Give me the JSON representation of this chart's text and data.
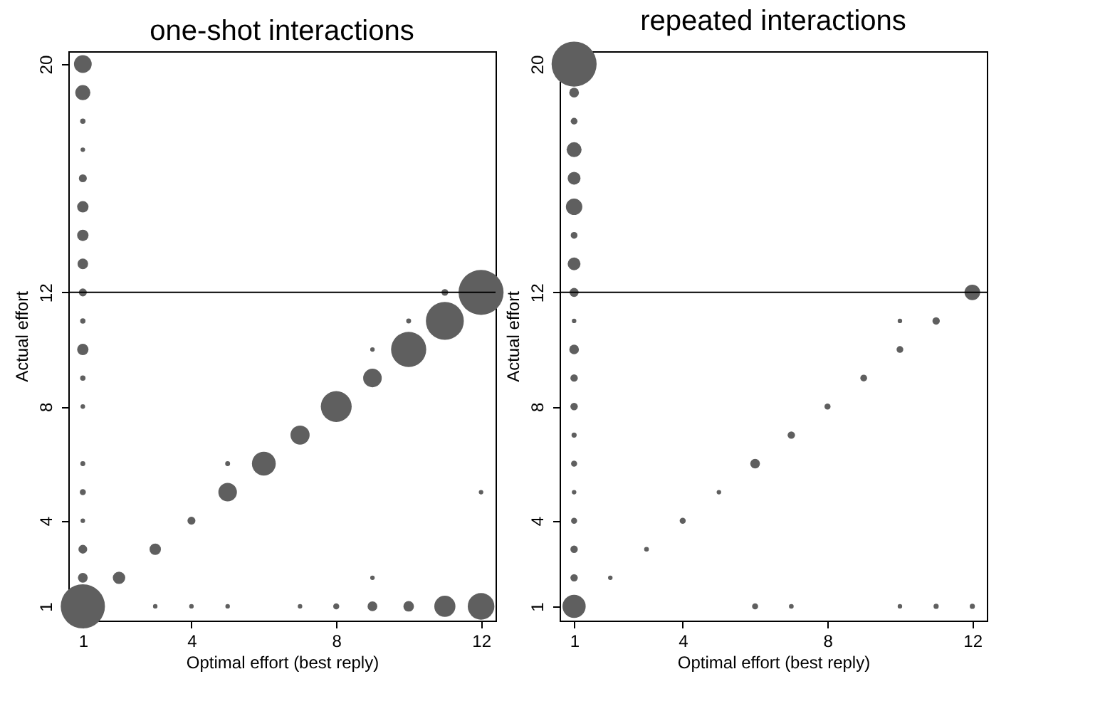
{
  "chart_data": [
    {
      "type": "bubble",
      "title": "one-shot interactions",
      "xlabel": "Optimal effort (best reply)",
      "ylabel": "Actual effort",
      "color": "#5f5f5f",
      "grid": false,
      "legend": false,
      "xlim": [
        0.6,
        12.4
      ],
      "ylim": [
        0.5,
        20.45
      ],
      "xticks": [
        1,
        4,
        8,
        12
      ],
      "yticks": [
        1,
        4,
        8,
        12,
        20
      ],
      "ref_lines": [
        {
          "axis": "y",
          "value": 12,
          "color": "#000000"
        }
      ],
      "x": [
        1,
        1,
        1,
        1,
        1,
        1,
        1,
        1,
        1,
        1,
        1,
        1,
        1,
        1,
        1,
        1,
        1,
        1,
        1,
        2,
        3,
        4,
        5,
        6,
        7,
        8,
        9,
        10,
        11,
        12,
        5,
        9,
        10,
        11,
        9,
        12,
        3,
        4,
        5,
        7,
        8,
        9,
        10,
        11,
        12
      ],
      "values": [
        20,
        19,
        18,
        17,
        16,
        15,
        14,
        13,
        12,
        11,
        10,
        9,
        8,
        6,
        5,
        4,
        3,
        2,
        1,
        2,
        3,
        4,
        5,
        6,
        7,
        8,
        9,
        10,
        11,
        12,
        6,
        10,
        11,
        12,
        2,
        5,
        1,
        1,
        1,
        1,
        1,
        1,
        1,
        1,
        1
      ],
      "sizes": [
        0.155,
        0.112,
        0.014,
        0.01,
        0.031,
        0.064,
        0.064,
        0.055,
        0.031,
        0.014,
        0.064,
        0.014,
        0.01,
        0.012,
        0.018,
        0.01,
        0.038,
        0.047,
        0.965,
        0.076,
        0.064,
        0.031,
        0.17,
        0.28,
        0.18,
        0.47,
        0.17,
        0.61,
        0.71,
        1,
        0.012,
        0.01,
        0.012,
        0.022,
        0.01,
        0.01,
        0.01,
        0.01,
        0.01,
        0.01,
        0.018,
        0.047,
        0.055,
        0.22,
        0.35
      ]
    },
    {
      "type": "bubble",
      "title": "repeated interactions",
      "xlabel": "Optimal effort (best reply)",
      "ylabel": "Actual effort",
      "color": "#5f5f5f",
      "grid": false,
      "legend": false,
      "xlim": [
        0.6,
        12.4
      ],
      "ylim": [
        0.5,
        20.45
      ],
      "xticks": [
        1,
        4,
        8,
        12
      ],
      "yticks": [
        1,
        4,
        8,
        12,
        20
      ],
      "ref_lines": [
        {
          "axis": "y",
          "value": 12,
          "color": "#000000"
        }
      ],
      "x": [
        1,
        1,
        1,
        1,
        1,
        1,
        1,
        1,
        1,
        1,
        1,
        1,
        1,
        1,
        1,
        1,
        1,
        1,
        1,
        1,
        2,
        3,
        4,
        5,
        6,
        7,
        8,
        9,
        10,
        11,
        12,
        10,
        6,
        7,
        10,
        11,
        12
      ],
      "values": [
        20,
        19,
        18,
        17,
        16,
        15,
        14,
        13,
        12,
        11,
        10,
        9,
        8,
        7,
        6,
        5,
        4,
        3,
        2,
        1,
        2,
        3,
        4,
        5,
        6,
        7,
        8,
        9,
        10,
        11,
        12,
        11,
        1,
        1,
        1,
        1,
        1
      ],
      "sizes": [
        1,
        0.046,
        0.0225,
        0.11,
        0.081,
        0.133,
        0.0225,
        0.081,
        0.04,
        0.01,
        0.046,
        0.027,
        0.027,
        0.013,
        0.018,
        0.01,
        0.018,
        0.027,
        0.027,
        0.265,
        0.01,
        0.011,
        0.018,
        0.01,
        0.046,
        0.027,
        0.018,
        0.0225,
        0.0225,
        0.027,
        0.12,
        0.01,
        0.018,
        0.011,
        0.01,
        0.013,
        0.013
      ]
    }
  ]
}
